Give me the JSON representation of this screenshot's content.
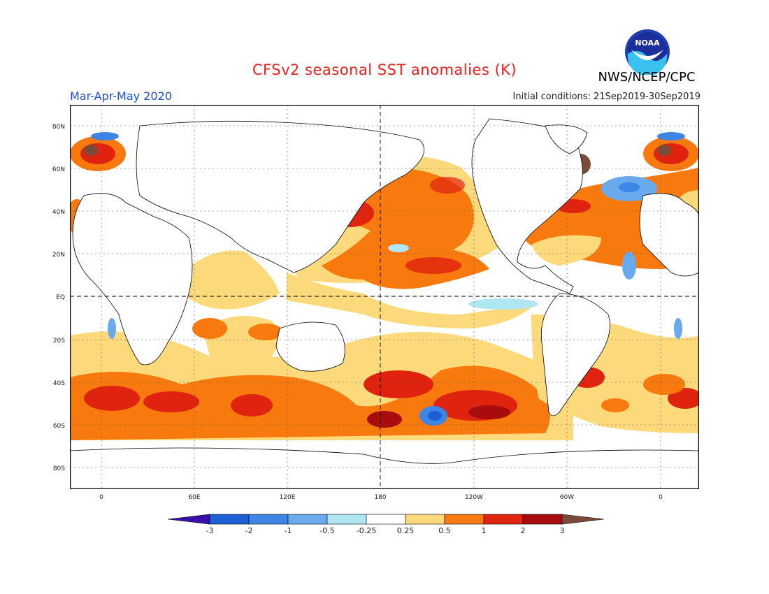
{
  "header": {
    "title": "CFSv2 seasonal SST anomalies (K)",
    "agency": "NWS/NCEP/CPC",
    "logo_text": "NOAA",
    "season": "Mar-Apr-May 2020",
    "initial_conditions": "Initial conditions: 21Sep2019-30Sep2019"
  },
  "map": {
    "lat_labels": [
      "80N",
      "60N",
      "40N",
      "20N",
      "EQ",
      "20S",
      "40S",
      "60S",
      "80S"
    ],
    "lon_labels": [
      "0",
      "60E",
      "120E",
      "180",
      "120W",
      "60W",
      "0"
    ]
  },
  "colorbar": {
    "labels": [
      "-3",
      "-2",
      "-1",
      "-0.5",
      "-0.25",
      "0.25",
      "0.5",
      "1",
      "2",
      "3"
    ],
    "colors": [
      "#3b10a8",
      "#1f5fd6",
      "#3d86e6",
      "#69a9ee",
      "#aee6f2",
      "#ffffff",
      "#fcda7c",
      "#f8790e",
      "#e0230e",
      "#a80c0c",
      "#7b4b3a"
    ]
  },
  "colors": {
    "title": "#e8221c",
    "season": "#1e4fd6",
    "land": "#ffffff"
  }
}
